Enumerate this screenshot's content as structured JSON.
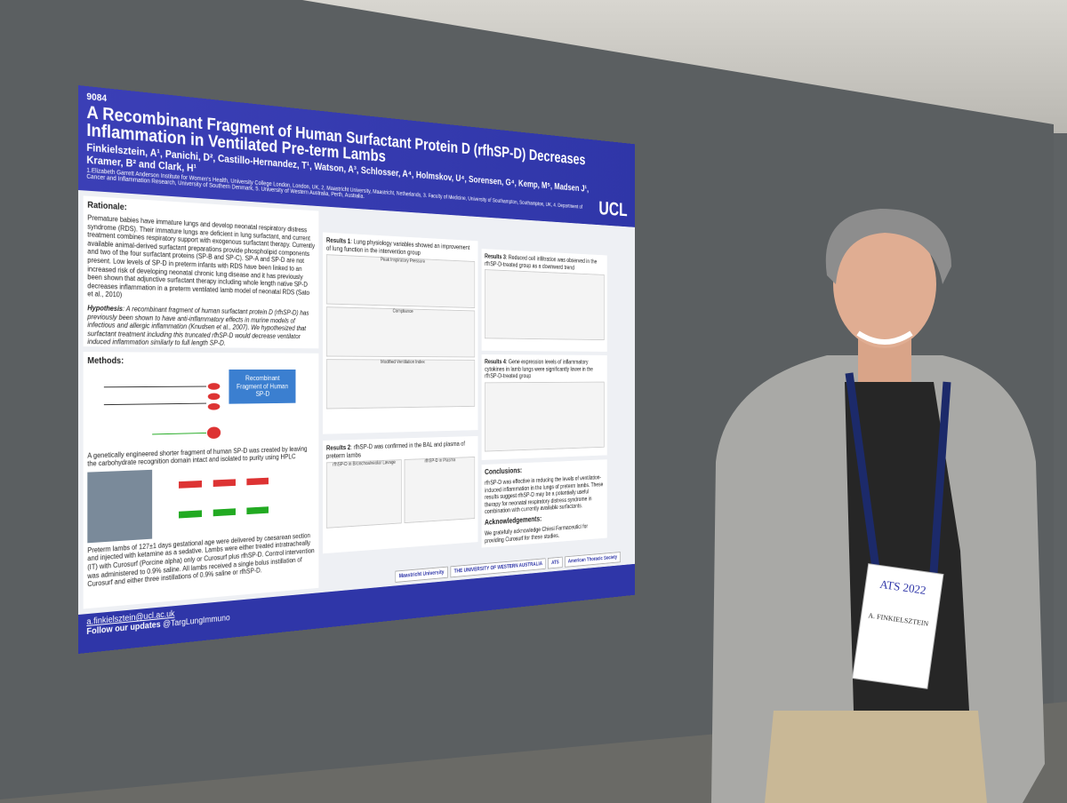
{
  "poster": {
    "number": "9084",
    "title": "A Recombinant Fragment of Human Surfactant Protein D (rfhSP-D) Decreases Inflammation in Ventilated Pre-term Lambs",
    "authors": "Finkielsztein, A¹, Panichi, D², Castillo-Hernandez, T¹, Watson, A³, Schlosser, A⁴, Holmskov, U⁴, Sorensen, G⁴, Kemp, M⁵, Madsen J¹, Kramer, B² and Clark, H¹",
    "affiliations": "1.Elizabeth Garrett Anderson Institute for Women's Health, University College London, London, UK, 2. Maastricht University, Maastricht, Netherlands, 3. Faculty of Medicine, University of Southampton, Southampton, UK, 4. Department of Cancer and Inflammation Research, University of Southern Denmark, 5. University of Western Australia, Perth, Australia.",
    "logo": "UCL",
    "rationale": {
      "heading": "Rationale:",
      "text": "Premature babies have immature lungs and develop neonatal respiratory distress syndrome (RDS). Their immature lungs are deficient in lung surfactant, and current treatment combines respiratory support with exogenous surfactant therapy. Currently available animal-derived surfactant preparations provide phospholipid components and two of the four surfactant proteins (SP-B and SP-C). SP-A and SP-D are not present. Low levels of SP-D in preterm infants with RDS have been linked to an increased risk of developing neonatal chronic lung disease and it has previously been shown that adjunctive surfactant therapy including whole length native SP-D decreases inflammation in a preterm ventilated lamb model of neonatal RDS (Sato et al., 2010)"
    },
    "hypothesis": {
      "heading": "Hypothesis",
      "text": ": A recombinant fragment of human surfactant protein D (rfhSP-D) has previously been shown to have anti-inflammatory effects in murine models of infectious and allergic inflammation (Knudsen et al., 2007). We hypothesized that surfactant treatment including this truncated rfhSP-D would decrease ventilator induced inflammation similarly to full length SP-D."
    },
    "methods": {
      "heading": "Methods:",
      "box": "Recombinant Fragment of Human SP-D",
      "caption": "A genetically engineered shorter fragment of human SP-D was created by leaving the carbohydrate recognition domain intact and isolated to purity using HPLC",
      "text": "Preterm lambs of 127±1 days gestational age were delivered by caesarean section and injected with ketamine as a sedative. Lambs were either treated intratracheally (IT) with Curosurf (Porcine alpha) only or Curosurf plus rfhSP-D. Control intervention was administered to 0.9% saline. All lambs received a single bolus instillation of Curosurf and either three instillations of 0.9% saline or rfhSP-D."
    },
    "results": [
      {
        "heading": "Results 1",
        "text": ": Lung physiology variables showed an improvement of lung function in the intervention group",
        "charts": [
          "Peak Inspiratory Pressure",
          "Compliance",
          "Modified Ventilation Index"
        ]
      },
      {
        "heading": "Results 2",
        "text": ": rfhSP-D was confirmed in the BAL and plasma of preterm lambs",
        "charts": [
          "rfhSP-D in Bronchoalveolar Lavage",
          "rfhSP-D in Plasma"
        ]
      },
      {
        "heading": "Results 3",
        "text": ": Reduced cell infiltration was observed in the rfhSP-D-treated group as a downward trend",
        "charts": []
      },
      {
        "heading": "Results 4",
        "text": ": Gene expression levels of inflammatory cytokines in lamb lungs were significantly lower in the rfhSP-D-treated group",
        "charts": []
      }
    ],
    "conclusions": {
      "heading": "Conclusions:",
      "text": "rfhSP-D was effective in reducing the levels of ventilation-induced inflammation in the lungs of preterm lambs. These results suggest rfhSP-D may be a potentially useful therapy for neonatal respiratory distress syndrome in combination with currently available surfactants."
    },
    "acknowledgements": {
      "heading": "Acknowledgements:",
      "text": "We gratefully acknowledge Chiesi Farmaceutici for providing Curosurf for these studies."
    },
    "email": "a.finkielsztein@ucl.ac.uk",
    "follow": "Follow our updates",
    "handle": "@TargLungImmuno",
    "sponsors": [
      "Maastricht University",
      "THE UNIVERSITY OF WESTERN AUSTRALIA",
      "ATS",
      "American Thoracic Society"
    ]
  },
  "badge": {
    "event": "ATS 2022",
    "name": "A. FINKIELSZTEIN"
  }
}
